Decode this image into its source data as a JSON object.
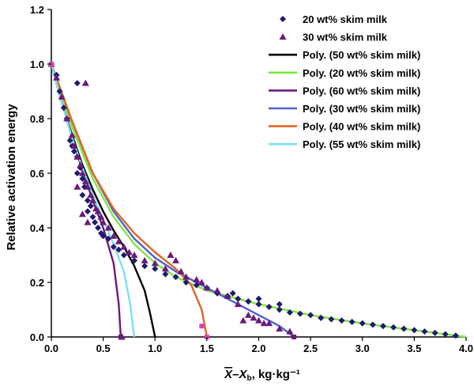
{
  "chart_data": {
    "type": "scatter",
    "title": "",
    "xlabel": "X̅–X_b, kg·kg⁻¹",
    "xlabel_parts": {
      "x": "X",
      "minus": "–X",
      "sub": "b",
      "units": ", kg·kg⁻¹"
    },
    "ylabel": "Relative activation energy",
    "xlim": [
      0.0,
      4.0
    ],
    "ylim": [
      0.0,
      1.2
    ],
    "xticks": [
      "0.0",
      "0.5",
      "1.0",
      "1.5",
      "2.0",
      "2.5",
      "3.0",
      "3.5",
      "4.0"
    ],
    "yticks": [
      "0.0",
      "0.2",
      "0.4",
      "0.6",
      "0.8",
      "1.0",
      "1.2"
    ],
    "legend_position": "top-right",
    "scatter_series": [
      {
        "name": "20 wt% skim milk",
        "marker": "diamond",
        "color": "#1f1a6e",
        "points": [
          [
            0.0,
            1.0
          ],
          [
            0.05,
            0.96
          ],
          [
            0.08,
            0.9
          ],
          [
            0.12,
            0.84
          ],
          [
            0.15,
            0.8
          ],
          [
            0.18,
            0.72
          ],
          [
            0.2,
            0.7
          ],
          [
            0.22,
            0.68
          ],
          [
            0.25,
            0.66
          ],
          [
            0.25,
            0.6
          ],
          [
            0.28,
            0.62
          ],
          [
            0.3,
            0.58
          ],
          [
            0.3,
            0.52
          ],
          [
            0.32,
            0.55
          ],
          [
            0.35,
            0.5
          ],
          [
            0.35,
            0.46
          ],
          [
            0.38,
            0.48
          ],
          [
            0.4,
            0.44
          ],
          [
            0.42,
            0.42
          ],
          [
            0.45,
            0.4
          ],
          [
            0.48,
            0.38
          ],
          [
            0.5,
            0.37
          ],
          [
            0.25,
            0.93
          ],
          [
            0.55,
            0.36
          ],
          [
            0.6,
            0.33
          ],
          [
            0.65,
            0.32
          ],
          [
            0.7,
            0.3
          ],
          [
            0.8,
            0.28
          ],
          [
            0.9,
            0.26
          ],
          [
            1.0,
            0.25
          ],
          [
            1.1,
            0.23
          ],
          [
            1.2,
            0.22
          ],
          [
            1.3,
            0.2
          ],
          [
            1.4,
            0.19
          ],
          [
            1.5,
            0.18
          ],
          [
            1.6,
            0.16
          ],
          [
            1.7,
            0.15
          ],
          [
            1.8,
            0.14
          ],
          [
            1.9,
            0.13
          ],
          [
            2.0,
            0.12
          ],
          [
            2.1,
            0.11
          ],
          [
            2.2,
            0.1
          ],
          [
            2.3,
            0.09
          ],
          [
            2.4,
            0.085
          ],
          [
            2.5,
            0.08
          ],
          [
            2.6,
            0.07
          ],
          [
            2.7,
            0.065
          ],
          [
            2.8,
            0.06
          ],
          [
            2.9,
            0.055
          ],
          [
            3.0,
            0.05
          ],
          [
            3.1,
            0.045
          ],
          [
            3.2,
            0.04
          ],
          [
            3.3,
            0.035
          ],
          [
            3.4,
            0.03
          ],
          [
            3.5,
            0.025
          ],
          [
            3.6,
            0.02
          ],
          [
            3.7,
            0.015
          ],
          [
            3.8,
            0.01
          ],
          [
            3.9,
            0.005
          ],
          [
            2.0,
            0.14
          ],
          [
            1.9,
            0.13
          ],
          [
            1.75,
            0.16
          ],
          [
            2.2,
            0.12
          ],
          [
            2.6,
            0.07
          ]
        ]
      },
      {
        "name": "30 wt% skim milk",
        "marker": "triangle",
        "color": "#6a1b7a",
        "points": [
          [
            0.0,
            1.0
          ],
          [
            0.05,
            0.95
          ],
          [
            0.1,
            0.88
          ],
          [
            0.15,
            0.8
          ],
          [
            0.2,
            0.74
          ],
          [
            0.22,
            0.7
          ],
          [
            0.25,
            0.66
          ],
          [
            0.28,
            0.63
          ],
          [
            0.3,
            0.6
          ],
          [
            0.33,
            0.57
          ],
          [
            0.35,
            0.55
          ],
          [
            0.38,
            0.52
          ],
          [
            0.4,
            0.5
          ],
          [
            0.43,
            0.47
          ],
          [
            0.45,
            0.46
          ],
          [
            0.48,
            0.44
          ],
          [
            0.5,
            0.42
          ],
          [
            0.33,
            0.93
          ],
          [
            0.55,
            0.4
          ],
          [
            0.6,
            0.37
          ],
          [
            0.65,
            0.35
          ],
          [
            0.7,
            0.33
          ],
          [
            0.75,
            0.31
          ],
          [
            0.8,
            0.3
          ],
          [
            0.9,
            0.28
          ],
          [
            1.0,
            0.27
          ],
          [
            1.1,
            0.25
          ],
          [
            1.15,
            0.3
          ],
          [
            1.2,
            0.28
          ],
          [
            1.25,
            0.24
          ],
          [
            1.3,
            0.22
          ],
          [
            1.4,
            0.21
          ],
          [
            1.45,
            0.2
          ],
          [
            1.5,
            0.18
          ],
          [
            1.6,
            0.17
          ],
          [
            1.7,
            0.15
          ],
          [
            1.8,
            0.12
          ],
          [
            1.9,
            0.08
          ],
          [
            2.0,
            0.06
          ],
          [
            2.1,
            0.05
          ],
          [
            2.2,
            0.03
          ],
          [
            2.3,
            0.02
          ],
          [
            1.85,
            0.06
          ],
          [
            1.95,
            0.07
          ],
          [
            2.05,
            0.05
          ],
          [
            0.68,
            0.0
          ],
          [
            0.3,
            0.45
          ],
          [
            0.35,
            0.42
          ],
          [
            0.25,
            0.55
          ]
        ]
      }
    ],
    "fit_series": [
      {
        "name": "Poly. (50 wt% skim milk)",
        "color": "#000000",
        "points": [
          [
            0.0,
            1.0
          ],
          [
            0.1,
            0.86
          ],
          [
            0.2,
            0.74
          ],
          [
            0.3,
            0.63
          ],
          [
            0.4,
            0.54
          ],
          [
            0.5,
            0.46
          ],
          [
            0.6,
            0.39
          ],
          [
            0.7,
            0.33
          ],
          [
            0.8,
            0.26
          ],
          [
            0.9,
            0.17
          ],
          [
            0.95,
            0.09
          ],
          [
            1.0,
            0.0
          ]
        ]
      },
      {
        "name": "Poly. (20 wt% skim milk)",
        "color": "#7ee83a",
        "points": [
          [
            0.0,
            1.0
          ],
          [
            0.2,
            0.77
          ],
          [
            0.4,
            0.58
          ],
          [
            0.6,
            0.44
          ],
          [
            0.8,
            0.34
          ],
          [
            1.0,
            0.27
          ],
          [
            1.2,
            0.22
          ],
          [
            1.5,
            0.17
          ],
          [
            2.0,
            0.12
          ],
          [
            2.5,
            0.08
          ],
          [
            3.0,
            0.05
          ],
          [
            3.5,
            0.025
          ],
          [
            4.0,
            0.0
          ]
        ]
      },
      {
        "name": "Poly. (60 wt% skim milk)",
        "color": "#6a1b7a",
        "points": [
          [
            0.0,
            1.0
          ],
          [
            0.1,
            0.86
          ],
          [
            0.2,
            0.73
          ],
          [
            0.3,
            0.61
          ],
          [
            0.4,
            0.5
          ],
          [
            0.5,
            0.4
          ],
          [
            0.6,
            0.27
          ],
          [
            0.65,
            0.12
          ],
          [
            0.67,
            0.0
          ]
        ]
      },
      {
        "name": "Poly. (30 wt% skim milk)",
        "color": "#4f5fd0",
        "points": [
          [
            0.0,
            1.0
          ],
          [
            0.2,
            0.79
          ],
          [
            0.4,
            0.6
          ],
          [
            0.6,
            0.46
          ],
          [
            0.8,
            0.36
          ],
          [
            1.0,
            0.29
          ],
          [
            1.2,
            0.24
          ],
          [
            1.4,
            0.2
          ],
          [
            1.6,
            0.16
          ],
          [
            1.8,
            0.12
          ],
          [
            2.0,
            0.08
          ],
          [
            2.2,
            0.04
          ],
          [
            2.34,
            0.0
          ]
        ]
      },
      {
        "name": "Poly. (40 wt% skim milk)",
        "color": "#e06426",
        "points": [
          [
            0.0,
            1.0
          ],
          [
            0.2,
            0.79
          ],
          [
            0.4,
            0.6
          ],
          [
            0.6,
            0.47
          ],
          [
            0.8,
            0.38
          ],
          [
            1.0,
            0.31
          ],
          [
            1.2,
            0.25
          ],
          [
            1.35,
            0.19
          ],
          [
            1.45,
            0.1
          ],
          [
            1.5,
            0.0
          ]
        ]
      },
      {
        "name": "Poly. (55 wt% skim milk)",
        "color": "#7be2f2",
        "points": [
          [
            0.0,
            1.0
          ],
          [
            0.1,
            0.86
          ],
          [
            0.2,
            0.73
          ],
          [
            0.3,
            0.62
          ],
          [
            0.4,
            0.52
          ],
          [
            0.5,
            0.43
          ],
          [
            0.6,
            0.34
          ],
          [
            0.7,
            0.24
          ],
          [
            0.76,
            0.12
          ],
          [
            0.8,
            0.0
          ]
        ]
      }
    ],
    "endpoint_markers": [
      {
        "x": 0.0,
        "y": 1.0,
        "color": "#d63fa6"
      },
      {
        "x": 0.67,
        "y": 0.0,
        "color": "#6a1b7a"
      },
      {
        "x": 1.5,
        "y": 0.0,
        "color": "#e040c0"
      },
      {
        "x": 1.45,
        "y": 0.04,
        "color": "#e040c0"
      },
      {
        "x": 2.34,
        "y": 0.0,
        "color": "#6a1b7a"
      }
    ],
    "legend": [
      {
        "label": "20 wt% skim milk",
        "kind": "diamond",
        "color": "#1f1a6e"
      },
      {
        "label": "30 wt% skim milk",
        "kind": "triangle",
        "color": "#6a1b7a"
      },
      {
        "label": "Poly. (50 wt% skim milk)",
        "kind": "line",
        "color": "#000000"
      },
      {
        "label": "Poly. (20 wt% skim milk)",
        "kind": "line",
        "color": "#7ee83a"
      },
      {
        "label": "Poly. (60 wt% skim milk)",
        "kind": "line",
        "color": "#6a1b7a"
      },
      {
        "label": "Poly. (30 wt% skim milk)",
        "kind": "line",
        "color": "#4f5fd0"
      },
      {
        "label": "Poly. (40 wt% skim milk)",
        "kind": "line",
        "color": "#e06426"
      },
      {
        "label": "Poly. (55 wt% skim milk)",
        "kind": "line",
        "color": "#7be2f2"
      }
    ]
  }
}
